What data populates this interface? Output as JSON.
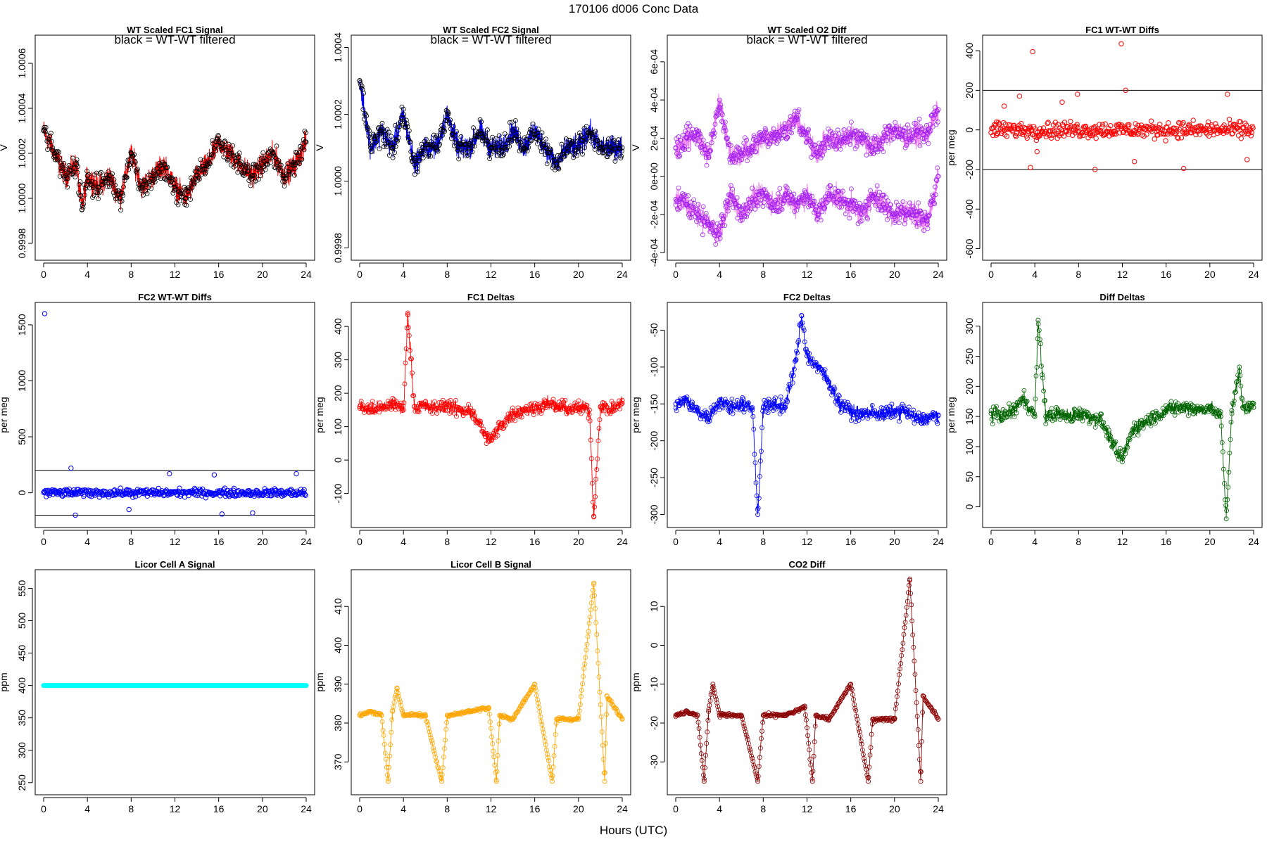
{
  "figure": {
    "title": "170106    d006    Conc Data",
    "xlabel": "Hours (UTC)"
  },
  "colors": {
    "fc1": "#ff0000",
    "fc2": "#0000ff",
    "o2diff_line": "#ee82ee",
    "o2diff_points": "#a020f0",
    "diff_deltas": "#006400",
    "licor_a": "#00ffff",
    "licor_b": "#ffa500",
    "co2diff": "#8b0000",
    "reference_lines": "#000000"
  },
  "chart_data": [
    {
      "id": "fc1-signal",
      "type": "line",
      "title": "WT Scaled FC1 Signal",
      "annotation": "black = WT-WT filtered",
      "ylabel": "V",
      "xlim": [
        0,
        24
      ],
      "ylim": [
        0.99975,
        1.0007
      ],
      "xticks": [
        0,
        4,
        8,
        12,
        16,
        20,
        24
      ],
      "yticks": [
        0.9998,
        1.0,
        1.0002,
        1.0004,
        1.0006
      ],
      "ytick_labels": [
        "0.9998",
        "1.0000",
        "1.0002",
        "1.0004",
        "1.0006"
      ],
      "color": "#ff0000",
      "point_color": "#000000",
      "series": [
        {
          "x": [
            0,
            1,
            2,
            3,
            3.5,
            4,
            5,
            6,
            7,
            8,
            9,
            10,
            11,
            12,
            13,
            14,
            15,
            16,
            17,
            18,
            19,
            20,
            21,
            22,
            23,
            24
          ],
          "values": [
            1.0003,
            1.0002,
            1.0001,
            1.00015,
            0.99995,
            1.0001,
            1.00005,
            1.0001,
            1.0,
            1.0002,
            1.00005,
            1.0001,
            1.00015,
            1.00005,
            1.0,
            1.0001,
            1.00015,
            1.00025,
            1.0002,
            1.00015,
            1.0001,
            1.00015,
            1.0002,
            1.0001,
            1.00015,
            1.00025
          ]
        }
      ]
    },
    {
      "id": "fc2-signal",
      "type": "line",
      "title": "WT Scaled FC2 Signal",
      "annotation": "black = WT-WT filtered",
      "ylabel": "V",
      "xlim": [
        0,
        24
      ],
      "ylim": [
        0.99978,
        1.00042
      ],
      "xticks": [
        0,
        4,
        8,
        12,
        16,
        20,
        24
      ],
      "yticks": [
        0.9998,
        1.0,
        1.0002,
        1.0004
      ],
      "ytick_labels": [
        "0.9998",
        "1.0000",
        "1.0002",
        "1.0004"
      ],
      "color": "#0000ff",
      "point_color": "#000000",
      "series": [
        {
          "x": [
            0,
            1,
            2,
            3,
            4,
            5,
            6,
            7,
            8,
            9,
            10,
            11,
            12,
            13,
            14,
            15,
            16,
            17,
            18,
            19,
            20,
            21,
            22,
            23,
            24
          ],
          "values": [
            1.0003,
            1.0001,
            1.00015,
            1.0001,
            1.0002,
            1.00005,
            1.0001,
            1.0001,
            1.0002,
            1.0001,
            1.0001,
            1.00015,
            1.0001,
            1.0001,
            1.00015,
            1.0001,
            1.00015,
            1.0001,
            1.00005,
            1.0001,
            1.0001,
            1.00015,
            1.0001,
            1.0001,
            1.0001
          ]
        }
      ]
    },
    {
      "id": "o2-diff",
      "type": "line",
      "title": "WT Scaled O2 Diff",
      "annotation": "black = WT-WT filtered",
      "ylabel": "V",
      "xlim": [
        0,
        24
      ],
      "ylim": [
        -0.00041,
        0.00071
      ],
      "xticks": [
        0,
        4,
        8,
        12,
        16,
        20,
        24
      ],
      "yticks": [
        -0.0004,
        -0.0002,
        0.0,
        0.0002,
        0.0004,
        0.0006
      ],
      "ytick_labels": [
        "-4e-04",
        "-2e-04",
        "0e+00",
        "2e-04",
        "4e-04",
        "6e-04"
      ],
      "color": "#ee82ee",
      "point_color": "#a020f0",
      "series": [
        {
          "x": [
            0,
            1,
            2,
            3,
            4,
            5,
            6,
            7,
            8,
            9,
            10,
            11,
            12,
            13,
            14,
            15,
            16,
            17,
            18,
            19,
            20,
            21,
            22,
            23,
            24
          ],
          "values": [
            0.00015,
            0.0002,
            0.00022,
            0.0001,
            0.0004,
            0.0001,
            0.00012,
            0.00015,
            0.0002,
            0.00022,
            0.00025,
            0.0003,
            0.0002,
            0.00012,
            0.0002,
            0.00018,
            0.00022,
            0.0002,
            0.00015,
            0.0002,
            0.00025,
            0.0002,
            0.00022,
            0.00022,
            0.00035
          ]
        },
        {
          "x": [
            0,
            1,
            2,
            3,
            4,
            5,
            6,
            7,
            8,
            9,
            10,
            11,
            12,
            13,
            14,
            15,
            16,
            17,
            18,
            19,
            20,
            21,
            22,
            23,
            24
          ],
          "values": [
            -0.00012,
            -0.00015,
            -0.0002,
            -0.00025,
            -0.0003,
            -0.0001,
            -0.0002,
            -0.00012,
            -0.0001,
            -0.00015,
            -0.0001,
            -0.00015,
            -0.0001,
            -0.0002,
            -0.0001,
            -0.00012,
            -0.00015,
            -0.0002,
            -0.0001,
            -0.00015,
            -0.0002,
            -0.00018,
            -0.0002,
            -0.00025,
            0.0
          ]
        }
      ]
    },
    {
      "id": "fc1-wtwt",
      "type": "scatter",
      "title": "FC1 WT-WT Diffs",
      "ylabel": "per meg",
      "xlim": [
        0,
        24
      ],
      "ylim": [
        -630,
        450
      ],
      "xticks": [
        0,
        4,
        8,
        12,
        16,
        20,
        24
      ],
      "yticks": [
        -600,
        -400,
        -200,
        0,
        200,
        400
      ],
      "ytick_labels": [
        "-600",
        "-400",
        "-200",
        "0",
        "200",
        "400"
      ],
      "hlines": [
        200,
        -200
      ],
      "color": "#ff0000",
      "series": [
        {
          "x": [
            0.5,
            1.2,
            2.6,
            3.6,
            3.8,
            4.2,
            6.5,
            7.9,
            9.5,
            11.9,
            12.3,
            13.1,
            17.6,
            21.6,
            23.4
          ],
          "values": [
            40,
            120,
            170,
            -190,
            395,
            -110,
            140,
            180,
            -200,
            435,
            200,
            -160,
            -195,
            180,
            -150
          ]
        }
      ],
      "scatter_band": {
        "center": 0,
        "spread": 60,
        "count": 400
      }
    },
    {
      "id": "fc2-wtwt",
      "type": "scatter",
      "title": "FC2 WT-WT Diffs",
      "ylabel": "per meg",
      "xlim": [
        0,
        24
      ],
      "ylim": [
        -260,
        1650
      ],
      "xticks": [
        0,
        4,
        8,
        12,
        16,
        20,
        24
      ],
      "yticks": [
        0,
        500,
        1000,
        1500
      ],
      "ytick_labels": [
        "0",
        "500",
        "1000",
        "1500"
      ],
      "hlines": [
        200,
        -200
      ],
      "color": "#0000ff",
      "series": [
        {
          "x": [
            0.1,
            2.5,
            2.9,
            7.8,
            11.5,
            15.6,
            16.3,
            19.1,
            23.1
          ],
          "values": [
            1600,
            220,
            -200,
            -150,
            170,
            160,
            -190,
            -180,
            170
          ]
        }
      ],
      "scatter_band": {
        "center": 0,
        "spread": 50,
        "count": 400
      }
    },
    {
      "id": "fc1-deltas",
      "type": "line",
      "title": "FC1 Deltas",
      "ylabel": "per meg",
      "xlim": [
        0,
        24
      ],
      "ylim": [
        -185,
        455
      ],
      "xticks": [
        0,
        4,
        8,
        12,
        16,
        20,
        24
      ],
      "yticks": [
        -100,
        0,
        100,
        200,
        300,
        400
      ],
      "ytick_labels": [
        "-100",
        "0",
        "100",
        "200",
        "300",
        "400"
      ],
      "color": "#ff0000",
      "series": [
        {
          "x": [
            0,
            1,
            2,
            3,
            4,
            4.4,
            5,
            6,
            7,
            8,
            9,
            10,
            11,
            11.5,
            12,
            13,
            14,
            15,
            16,
            17,
            18,
            19,
            20,
            21,
            21.4,
            22,
            23,
            24
          ],
          "values": [
            160,
            150,
            155,
            170,
            150,
            435,
            160,
            160,
            155,
            165,
            150,
            150,
            110,
            70,
            60,
            110,
            140,
            150,
            155,
            170,
            160,
            150,
            155,
            150,
            -170,
            160,
            150,
            170
          ]
        }
      ]
    },
    {
      "id": "fc2-deltas",
      "type": "line",
      "title": "FC2 Deltas",
      "ylabel": "per meg",
      "xlim": [
        0,
        24
      ],
      "ylim": [
        -310,
        -20
      ],
      "xticks": [
        0,
        4,
        8,
        12,
        16,
        20,
        24
      ],
      "yticks": [
        -300,
        -250,
        -200,
        -150,
        -100,
        -50
      ],
      "ytick_labels": [
        "-300",
        "-250",
        "-200",
        "-150",
        "-100",
        "-50"
      ],
      "color": "#0000ff",
      "series": [
        {
          "x": [
            0,
            1,
            2,
            3,
            4,
            5,
            6,
            7,
            7.5,
            8,
            9,
            10,
            11,
            11.5,
            12,
            13,
            14,
            15,
            16,
            17,
            18,
            19,
            20,
            21,
            22,
            23,
            24
          ],
          "values": [
            -150,
            -145,
            -160,
            -170,
            -145,
            -155,
            -150,
            -155,
            -300,
            -155,
            -150,
            -155,
            -90,
            -30,
            -85,
            -100,
            -120,
            -150,
            -160,
            -165,
            -160,
            -165,
            -160,
            -160,
            -170,
            -170,
            -165
          ]
        }
      ]
    },
    {
      "id": "diff-deltas",
      "type": "line",
      "title": "Diff Deltas",
      "ylabel": "per meg",
      "xlim": [
        0,
        24
      ],
      "ylim": [
        -25,
        330
      ],
      "xticks": [
        0,
        4,
        8,
        12,
        16,
        20,
        24
      ],
      "yticks": [
        0,
        50,
        100,
        150,
        200,
        250,
        300
      ],
      "ytick_labels": [
        "0",
        "50",
        "100",
        "150",
        "200",
        "250",
        "300"
      ],
      "color": "#006400",
      "series": [
        {
          "x": [
            0,
            1,
            2,
            3,
            4,
            4.3,
            5,
            6,
            7,
            8,
            9,
            10,
            11,
            11.5,
            12,
            13,
            14,
            15,
            16,
            17,
            18,
            19,
            20,
            21,
            21.5,
            22,
            22.7,
            23,
            24
          ],
          "values": [
            155,
            150,
            160,
            180,
            150,
            310,
            150,
            155,
            150,
            155,
            150,
            145,
            110,
            90,
            80,
            130,
            140,
            150,
            160,
            165,
            165,
            160,
            165,
            150,
            -20,
            160,
            225,
            165,
            165
          ]
        }
      ]
    },
    {
      "id": "licor-a",
      "type": "line",
      "title": "Licor Cell A Signal",
      "ylabel": "ppm",
      "xlim": [
        0,
        24
      ],
      "ylim": [
        240,
        570
      ],
      "xticks": [
        0,
        4,
        8,
        12,
        16,
        20,
        24
      ],
      "yticks": [
        250,
        300,
        350,
        400,
        450,
        500,
        550
      ],
      "ytick_labels": [
        "250",
        "300",
        "350",
        "400",
        "450",
        "500",
        "550"
      ],
      "color": "#00ffff",
      "series": [
        {
          "x": [
            0,
            24
          ],
          "values": [
            400,
            400
          ]
        }
      ]
    },
    {
      "id": "licor-b",
      "type": "line",
      "title": "Licor Cell B Signal",
      "ylabel": "ppm",
      "xlim": [
        0,
        24
      ],
      "ylim": [
        363,
        418
      ],
      "xticks": [
        0,
        4,
        8,
        12,
        16,
        20,
        24
      ],
      "yticks": [
        370,
        380,
        390,
        400,
        410
      ],
      "ytick_labels": [
        "370",
        "380",
        "390",
        "400",
        "410"
      ],
      "color": "#ffa500",
      "series": [
        {
          "x": [
            0,
            1,
            2,
            2.6,
            3,
            3.4,
            4,
            6,
            7.5,
            8,
            10,
            11.8,
            12.5,
            12.8,
            14,
            16,
            17.6,
            18,
            20,
            21.4,
            22.4,
            22.6,
            24
          ],
          "values": [
            382,
            383,
            382,
            365,
            383,
            389,
            382,
            382,
            365,
            382,
            383,
            384,
            365,
            382,
            381,
            390,
            365,
            381,
            381,
            416,
            365,
            387,
            381
          ]
        }
      ]
    },
    {
      "id": "co2-diff",
      "type": "line",
      "title": "CO2 Diff",
      "ylabel": "ppm",
      "xlim": [
        0,
        24
      ],
      "ylim": [
        -37,
        18
      ],
      "xticks": [
        0,
        4,
        8,
        12,
        16,
        20,
        24
      ],
      "yticks": [
        -30,
        -20,
        -10,
        0,
        10
      ],
      "ytick_labels": [
        "-30",
        "-20",
        "-10",
        "0",
        "10"
      ],
      "color": "#8b0000",
      "series": [
        {
          "x": [
            0,
            1,
            2,
            2.6,
            3,
            3.4,
            4,
            6,
            7.5,
            8,
            10,
            11.8,
            12.5,
            12.8,
            14,
            16,
            17.6,
            18,
            20,
            21.4,
            22.4,
            22.6,
            24
          ],
          "values": [
            -18,
            -17,
            -18,
            -35,
            -17,
            -10,
            -18,
            -18,
            -35,
            -18,
            -18,
            -16,
            -35,
            -18,
            -19,
            -10,
            -35,
            -19,
            -19,
            17,
            -35,
            -13,
            -19
          ]
        }
      ]
    }
  ]
}
